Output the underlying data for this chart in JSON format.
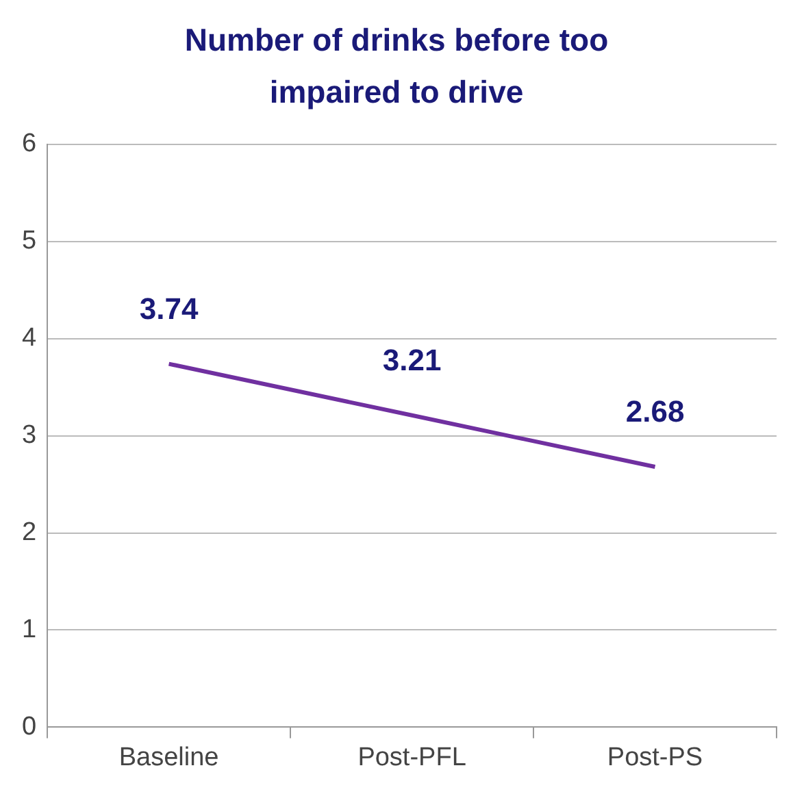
{
  "chart_data": {
    "type": "line",
    "title": "Number of drinks before too impaired to drive",
    "categories": [
      "Baseline",
      "Post-PFL",
      "Post-PS"
    ],
    "series": [
      {
        "color": "#7030a0",
        "values": [
          3.74,
          3.21,
          2.68
        ]
      }
    ],
    "ylim": [
      0,
      6
    ],
    "yticks": [
      0,
      1,
      2,
      3,
      4,
      5,
      6
    ],
    "grid": "y",
    "legend": false,
    "marker": "none",
    "line_style": "solid",
    "data_labels": true
  }
}
